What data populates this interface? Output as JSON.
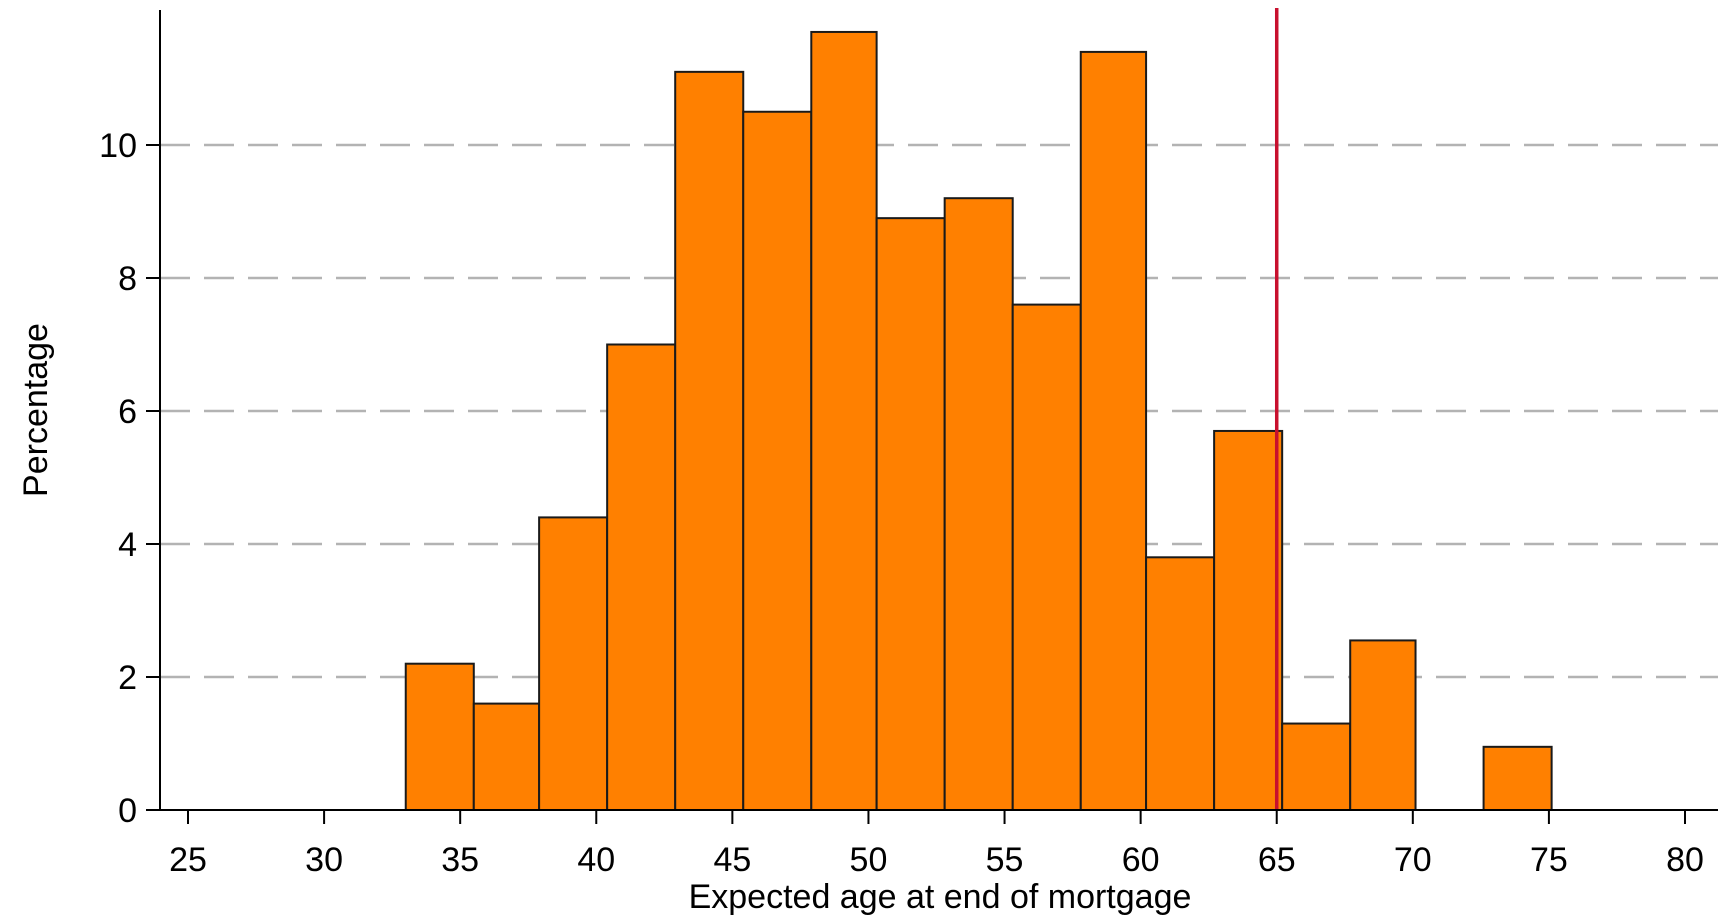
{
  "chart_data": {
    "type": "histogram",
    "xlabel": "Expected age at end of mortgage",
    "ylabel": "Percentage",
    "xlim": [
      25,
      80
    ],
    "ylim": [
      0,
      12
    ],
    "xticks": [
      25,
      30,
      35,
      40,
      45,
      50,
      55,
      60,
      65,
      70,
      75,
      80
    ],
    "yticks": [
      0,
      2,
      4,
      6,
      8,
      10
    ],
    "grid": "horizontal dashed",
    "bin_edges": [
      33.0,
      35.5,
      37.9,
      40.4,
      42.9,
      45.4,
      47.9,
      50.3,
      52.8,
      55.3,
      57.8,
      60.2,
      62.7,
      65.2,
      67.7,
      70.1,
      72.6,
      75.1
    ],
    "values": [
      2.2,
      1.6,
      4.4,
      7.0,
      11.1,
      10.5,
      11.7,
      8.9,
      9.2,
      7.6,
      11.4,
      3.8,
      5.7,
      1.3,
      2.55,
      0.0,
      0.95
    ],
    "reference_line": {
      "x": 65,
      "color": "#c8102e"
    },
    "bar_color": "#ff8000",
    "bar_edge_color": "#1a1a1a",
    "grid_color": "#b3b3b3"
  }
}
